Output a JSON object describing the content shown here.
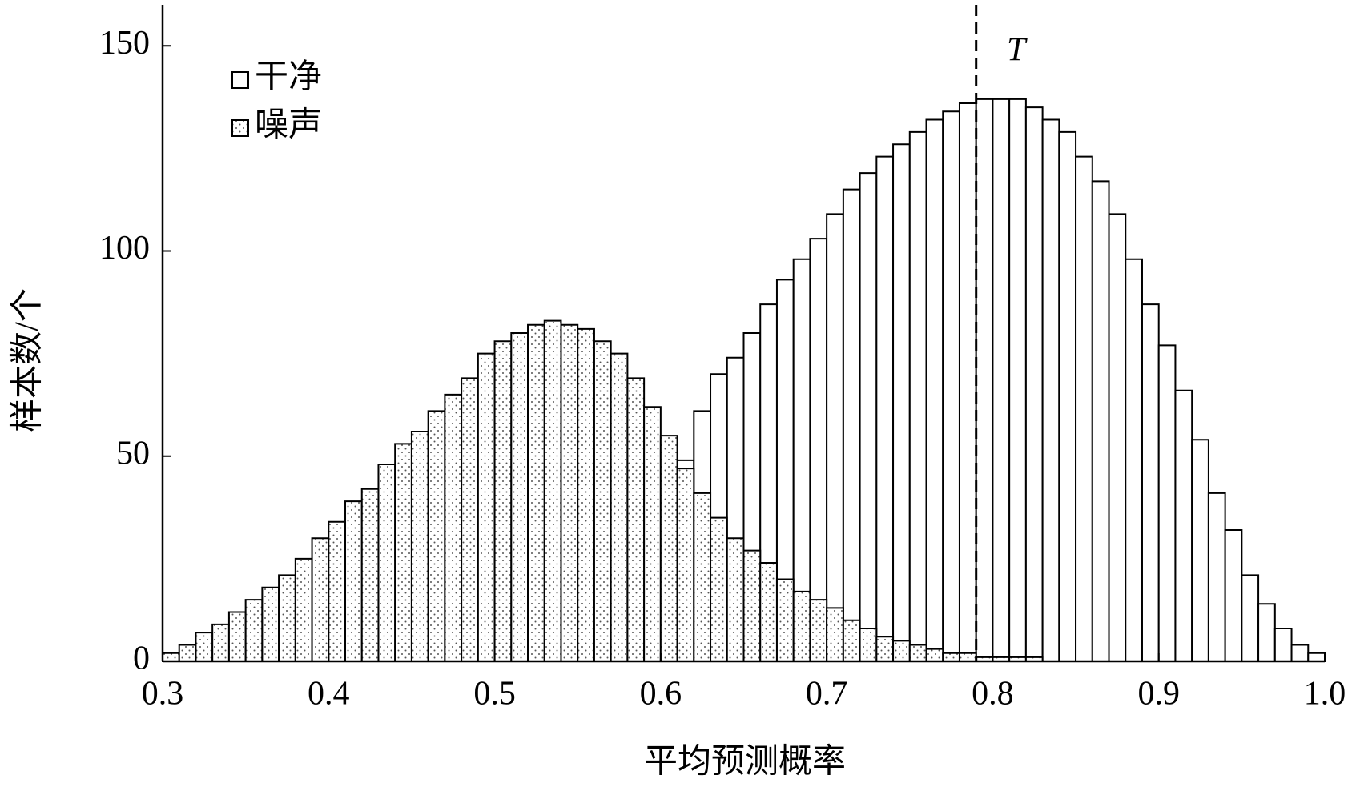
{
  "chart_data": {
    "type": "histogram",
    "xlabel": "平均预测概率",
    "ylabel": "样本数/个",
    "bins": [
      0.3,
      0.31,
      0.32,
      0.33,
      0.34,
      0.35,
      0.36,
      0.37,
      0.38,
      0.39,
      0.4,
      0.41,
      0.42,
      0.43,
      0.44,
      0.45,
      0.46,
      0.47,
      0.48,
      0.49,
      0.5,
      0.51,
      0.52,
      0.53,
      0.54,
      0.55,
      0.56,
      0.57,
      0.58,
      0.59,
      0.6,
      0.61,
      0.62,
      0.63,
      0.64,
      0.65,
      0.66,
      0.67,
      0.68,
      0.69,
      0.7,
      0.71,
      0.72,
      0.73,
      0.74,
      0.75,
      0.76,
      0.77,
      0.78,
      0.79,
      0.8,
      0.81,
      0.82,
      0.83,
      0.84,
      0.85,
      0.86,
      0.87,
      0.88,
      0.89,
      0.9,
      0.91,
      0.92,
      0.93,
      0.94,
      0.95,
      0.96,
      0.97,
      0.98,
      0.99,
      1.0
    ],
    "series": [
      {
        "name": "干净",
        "color": "#ffffff",
        "pattern": "none",
        "values": [
          0,
          0,
          0,
          0,
          0,
          0,
          0,
          0,
          0,
          0,
          0,
          0,
          0,
          0,
          0,
          0,
          0,
          0,
          0,
          0,
          1,
          2,
          3,
          5,
          7,
          10,
          14,
          19,
          25,
          32,
          40,
          49,
          61,
          70,
          74,
          80,
          87,
          93,
          98,
          103,
          109,
          115,
          119,
          123,
          126,
          129,
          132,
          134,
          136,
          137,
          137,
          137,
          135,
          132,
          129,
          123,
          117,
          109,
          98,
          87,
          77,
          66,
          54,
          41,
          32,
          21,
          14,
          8,
          4,
          2
        ]
      },
      {
        "name": "噪声",
        "color": "#ffffff",
        "pattern": "dots",
        "values": [
          2,
          4,
          7,
          9,
          12,
          15,
          18,
          21,
          25,
          30,
          34,
          39,
          42,
          48,
          53,
          56,
          61,
          65,
          69,
          75,
          78,
          80,
          82,
          83,
          82,
          81,
          78,
          75,
          69,
          62,
          55,
          47,
          41,
          35,
          30,
          27,
          24,
          20,
          17,
          15,
          13,
          10,
          8,
          6,
          5,
          4,
          3,
          2,
          2,
          1,
          1,
          1,
          1,
          0,
          0,
          0,
          0,
          0,
          0,
          0,
          0,
          0,
          0,
          0,
          0,
          0,
          0,
          0,
          0,
          0
        ]
      }
    ],
    "xlim": [
      0.3,
      1.0
    ],
    "xticks": [
      0.3,
      0.4,
      0.5,
      0.6,
      0.7,
      0.8,
      0.9,
      {
        "value": 1,
        "label": "1.0"
      }
    ],
    "ylim": [
      0,
      160
    ],
    "yticks": [
      0,
      50,
      100,
      150
    ],
    "threshold": {
      "label": "T",
      "x": 0.79
    },
    "legend": "upper left",
    "grid": false
  }
}
